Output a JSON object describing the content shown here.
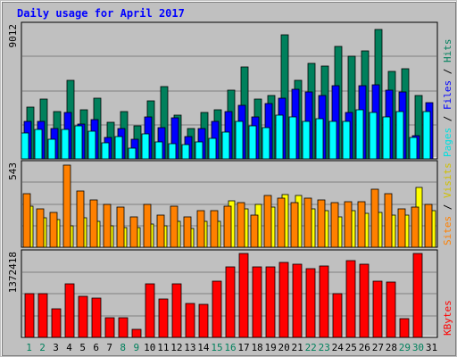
{
  "chart_data": {
    "type": "bar",
    "title": "Daily usage for April 2017",
    "days": [
      "1",
      "2",
      "3",
      "4",
      "5",
      "6",
      "7",
      "8",
      "9",
      "10",
      "11",
      "12",
      "13",
      "14",
      "15",
      "16",
      "17",
      "18",
      "19",
      "20",
      "21",
      "22",
      "23",
      "24",
      "25",
      "26",
      "27",
      "28",
      "29",
      "30",
      "31"
    ],
    "weekend_days": [
      1,
      2,
      8,
      9,
      15,
      16,
      22,
      23,
      29,
      30
    ],
    "panels": {
      "hits": {
        "max_label": "9012",
        "ymax": 9012,
        "series": [
          {
            "name": "Hits",
            "color": "#00805c",
            "values": [
              3530,
              4030,
              3230,
              5310,
              3330,
              4140,
              2450,
              3230,
              2230,
              3930,
              4870,
              2950,
              2060,
              3140,
              3330,
              4630,
              6210,
              4040,
              4320,
              8420,
              5320,
              6490,
              6270,
              7640,
              6970,
              7310,
              8740,
              5930,
              6110,
              4300,
              0
            ]
          },
          {
            "name": "Files",
            "color": "#0000ff",
            "values": [
              2550,
              2550,
              2050,
              3120,
              2340,
              2650,
              1450,
              2040,
              1350,
              2840,
              2140,
              2760,
              1520,
              2060,
              2550,
              3230,
              3620,
              2840,
              3730,
              4140,
              4730,
              4540,
              4320,
              4930,
              3120,
              4930,
              5040,
              4640,
              4540,
              1560,
              3800
            ]
          },
          {
            "name": "Pages",
            "color": "#00ffff",
            "values": [
              1740,
              2020,
              1350,
              2020,
              2230,
              1880,
              1060,
              1540,
              740,
              1680,
              1130,
              1030,
              950,
              1170,
              1420,
              1830,
              2520,
              2240,
              2110,
              2940,
              2830,
              2520,
              2730,
              2520,
              2530,
              3340,
              3150,
              2830,
              3230,
              1460,
              3230
            ]
          }
        ]
      },
      "visits": {
        "max_label": "543",
        "ymax": 543,
        "series": [
          {
            "name": "Visits",
            "color": "#ffff00",
            "values": [
              270,
              190,
              180,
              140,
              190,
              170,
              140,
              130,
              130,
              150,
              140,
              170,
              120,
              170,
              170,
              305,
              250,
              280,
              260,
              345,
              340,
              250,
              240,
              200,
              240,
              220,
              230,
              210,
              210,
              390,
              240
            ]
          },
          {
            "name": "Sites",
            "color": "#ff8000",
            "values": [
              350,
              250,
              230,
              540,
              370,
              310,
              280,
              260,
              200,
              280,
              210,
              270,
              200,
              240,
              240,
              270,
              290,
              210,
              340,
              320,
              290,
              320,
              310,
              290,
              300,
              300,
              380,
              350,
              250,
              260,
              280
            ]
          }
        ]
      },
      "kbytes": {
        "max_label": "1372418",
        "ymax": 1372418,
        "series": [
          {
            "name": "KBytes",
            "color": "#ff0000",
            "values": [
              720000,
              720000,
              470000,
              870000,
              670000,
              640000,
              320000,
              320000,
              130000,
              870000,
              630000,
              870000,
              560000,
              540000,
              920000,
              1150000,
              1372418,
              1150000,
              1150000,
              1230000,
              1200000,
              1120000,
              1170000,
              720000,
              1260000,
              1200000,
              920000,
              910000,
              310000,
              1372418,
              0
            ]
          }
        ]
      }
    },
    "side_labels": {
      "hits_panel": [
        {
          "text": "Pages",
          "color": "#00e0e0"
        },
        {
          "text": " / ",
          "color": "#000000"
        },
        {
          "text": "Files",
          "color": "#0000ff"
        },
        {
          "text": " / ",
          "color": "#000000"
        },
        {
          "text": "Hits",
          "color": "#00805c"
        }
      ],
      "visits_panel": [
        {
          "text": "Sites",
          "color": "#ff8000"
        },
        {
          "text": " / ",
          "color": "#000000"
        },
        {
          "text": "Visits",
          "color": "#d0c000"
        }
      ],
      "kbytes_panel": [
        {
          "text": "KBytes",
          "color": "#ff0000"
        }
      ]
    },
    "colors": {
      "background": "#c0c0c0",
      "title": "#0000ff",
      "weekday_label": "#000000",
      "weekend_label": "#00805c"
    },
    "grid": true
  }
}
